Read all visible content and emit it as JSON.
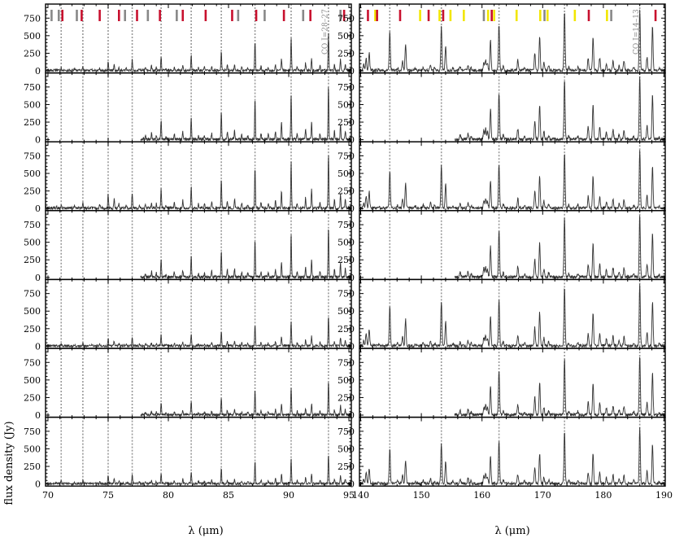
{
  "figure": {
    "ylabel": "flux density (Jy)",
    "xlabel": "λ (μm)"
  },
  "chart_data": {
    "type": "line",
    "panels_per_column": 7,
    "ylim": [
      -30,
      950
    ],
    "yticks": [
      0,
      250,
      500,
      750
    ],
    "colors": {
      "spectrum": "#333333",
      "guide": "#999999",
      "frame": "#000000",
      "marker_red": "#c8102e",
      "marker_gray": "#888888",
      "marker_yellow": "#f2e600"
    },
    "columns": [
      {
        "name": "left",
        "xlim": [
          69.8,
          95.2
        ],
        "xticks": [
          70,
          75,
          80,
          85,
          90,
          95
        ],
        "co_label": "CO J=28–27",
        "co_label_x": 93.4,
        "guide_lines": [
          71.1,
          72.9,
          75.0,
          77.0,
          79.4,
          81.9,
          84.4,
          87.2,
          90.2,
          93.3
        ],
        "panel_start": [
          69.8,
          77.7,
          69.8,
          77.7,
          69.8,
          77.7,
          69.8
        ],
        "panel_scale": [
          0.7,
          0.95,
          1.0,
          0.9,
          0.55,
          0.6,
          0.55
        ],
        "markers": [
          {
            "x": 70.3,
            "c": "gray"
          },
          {
            "x": 70.9,
            "c": "gray"
          },
          {
            "x": 71.2,
            "c": "red"
          },
          {
            "x": 72.4,
            "c": "gray"
          },
          {
            "x": 72.8,
            "c": "red"
          },
          {
            "x": 74.3,
            "c": "red"
          },
          {
            "x": 75.9,
            "c": "red"
          },
          {
            "x": 76.4,
            "c": "gray"
          },
          {
            "x": 77.4,
            "c": "red"
          },
          {
            "x": 78.3,
            "c": "gray"
          },
          {
            "x": 79.3,
            "c": "red"
          },
          {
            "x": 80.7,
            "c": "gray"
          },
          {
            "x": 81.2,
            "c": "red"
          },
          {
            "x": 83.1,
            "c": "red"
          },
          {
            "x": 85.3,
            "c": "red"
          },
          {
            "x": 85.8,
            "c": "gray"
          },
          {
            "x": 87.3,
            "c": "red"
          },
          {
            "x": 88.0,
            "c": "gray"
          },
          {
            "x": 89.6,
            "c": "red"
          },
          {
            "x": 91.2,
            "c": "gray"
          },
          {
            "x": 91.8,
            "c": "red"
          },
          {
            "x": 94.3,
            "c": "gray"
          },
          {
            "x": 94.6,
            "c": "red"
          }
        ],
        "peaks": [
          {
            "x": 70.7,
            "h": 30
          },
          {
            "x": 71.1,
            "h": 60
          },
          {
            "x": 72.2,
            "h": 35
          },
          {
            "x": 72.9,
            "h": 90
          },
          {
            "x": 73.6,
            "h": 25
          },
          {
            "x": 74.3,
            "h": 50
          },
          {
            "x": 75.0,
            "h": 200
          },
          {
            "x": 75.5,
            "h": 130
          },
          {
            "x": 75.9,
            "h": 60
          },
          {
            "x": 76.5,
            "h": 40
          },
          {
            "x": 77.0,
            "h": 220
          },
          {
            "x": 77.6,
            "h": 45
          },
          {
            "x": 78.1,
            "h": 50
          },
          {
            "x": 78.6,
            "h": 90
          },
          {
            "x": 79.0,
            "h": 60
          },
          {
            "x": 79.4,
            "h": 280
          },
          {
            "x": 79.8,
            "h": 40
          },
          {
            "x": 80.5,
            "h": 80
          },
          {
            "x": 81.2,
            "h": 110
          },
          {
            "x": 81.9,
            "h": 310
          },
          {
            "x": 82.5,
            "h": 55
          },
          {
            "x": 83.0,
            "h": 60
          },
          {
            "x": 83.6,
            "h": 90
          },
          {
            "x": 84.4,
            "h": 400
          },
          {
            "x": 84.9,
            "h": 110
          },
          {
            "x": 85.5,
            "h": 130
          },
          {
            "x": 86.1,
            "h": 70
          },
          {
            "x": 86.6,
            "h": 60
          },
          {
            "x": 87.2,
            "h": 580
          },
          {
            "x": 87.7,
            "h": 90
          },
          {
            "x": 88.3,
            "h": 70
          },
          {
            "x": 88.9,
            "h": 120
          },
          {
            "x": 89.4,
            "h": 240
          },
          {
            "x": 90.2,
            "h": 650
          },
          {
            "x": 90.7,
            "h": 80
          },
          {
            "x": 91.4,
            "h": 150
          },
          {
            "x": 91.9,
            "h": 260
          },
          {
            "x": 92.6,
            "h": 90
          },
          {
            "x": 93.3,
            "h": 780
          },
          {
            "x": 93.8,
            "h": 120
          },
          {
            "x": 94.3,
            "h": 220
          },
          {
            "x": 94.7,
            "h": 130
          }
        ]
      },
      {
        "name": "right",
        "xlim": [
          139.8,
          190.2
        ],
        "xticks": [
          140,
          150,
          160,
          170,
          180,
          190
        ],
        "co_label": "CO J=14–13",
        "co_label_x": 186.2,
        "guide_lines": [
          144.8,
          153.3,
          162.8,
          173.6,
          186.0
        ],
        "panel_start": [
          139.8,
          155.5,
          139.8,
          155.5,
          139.8,
          155.5,
          139.8
        ],
        "panel_scale": [
          1.0,
          1.0,
          0.95,
          1.0,
          1.0,
          0.95,
          0.9
        ],
        "markers": [
          {
            "x": 141.2,
            "c": "red"
          },
          {
            "x": 142.4,
            "c": "yellow"
          },
          {
            "x": 142.7,
            "c": "red"
          },
          {
            "x": 146.5,
            "c": "red"
          },
          {
            "x": 149.8,
            "c": "yellow"
          },
          {
            "x": 151.2,
            "c": "red"
          },
          {
            "x": 153.0,
            "c": "yellow"
          },
          {
            "x": 153.6,
            "c": "red"
          },
          {
            "x": 154.8,
            "c": "yellow"
          },
          {
            "x": 157.0,
            "c": "yellow"
          },
          {
            "x": 160.3,
            "c": "gray"
          },
          {
            "x": 161.0,
            "c": "yellow"
          },
          {
            "x": 161.6,
            "c": "red"
          },
          {
            "x": 162.0,
            "c": "yellow"
          },
          {
            "x": 165.7,
            "c": "yellow"
          },
          {
            "x": 169.6,
            "c": "yellow"
          },
          {
            "x": 170.3,
            "c": "gray"
          },
          {
            "x": 170.8,
            "c": "yellow"
          },
          {
            "x": 175.3,
            "c": "yellow"
          },
          {
            "x": 177.6,
            "c": "red"
          },
          {
            "x": 180.6,
            "c": "yellow"
          },
          {
            "x": 181.3,
            "c": "gray"
          },
          {
            "x": 188.6,
            "c": "red"
          }
        ],
        "peaks": [
          {
            "x": 140.5,
            "h": 80
          },
          {
            "x": 140.9,
            "h": 180
          },
          {
            "x": 141.4,
            "h": 250
          },
          {
            "x": 143.0,
            "h": 30
          },
          {
            "x": 144.8,
            "h": 560
          },
          {
            "x": 146.1,
            "h": 40
          },
          {
            "x": 146.9,
            "h": 140
          },
          {
            "x": 147.4,
            "h": 380
          },
          {
            "x": 149.0,
            "h": 30
          },
          {
            "x": 150.3,
            "h": 50
          },
          {
            "x": 151.5,
            "h": 80
          },
          {
            "x": 152.2,
            "h": 40
          },
          {
            "x": 153.3,
            "h": 640
          },
          {
            "x": 154.0,
            "h": 360
          },
          {
            "x": 155.2,
            "h": 40
          },
          {
            "x": 156.4,
            "h": 60
          },
          {
            "x": 157.7,
            "h": 80
          },
          {
            "x": 158.2,
            "h": 40
          },
          {
            "x": 160.3,
            "h": 120
          },
          {
            "x": 160.6,
            "h": 150
          },
          {
            "x": 160.9,
            "h": 110
          },
          {
            "x": 161.4,
            "h": 430
          },
          {
            "x": 162.8,
            "h": 660
          },
          {
            "x": 163.5,
            "h": 60
          },
          {
            "x": 165.9,
            "h": 150
          },
          {
            "x": 167.0,
            "h": 40
          },
          {
            "x": 168.7,
            "h": 260
          },
          {
            "x": 169.5,
            "h": 480
          },
          {
            "x": 170.2,
            "h": 110
          },
          {
            "x": 171.0,
            "h": 60
          },
          {
            "x": 173.6,
            "h": 840
          },
          {
            "x": 174.3,
            "h": 50
          },
          {
            "x": 175.8,
            "h": 50
          },
          {
            "x": 177.5,
            "h": 180
          },
          {
            "x": 178.3,
            "h": 480
          },
          {
            "x": 179.4,
            "h": 180
          },
          {
            "x": 180.5,
            "h": 100
          },
          {
            "x": 181.6,
            "h": 140
          },
          {
            "x": 182.6,
            "h": 70
          },
          {
            "x": 183.4,
            "h": 130
          },
          {
            "x": 185.0,
            "h": 50
          },
          {
            "x": 186.0,
            "h": 880
          },
          {
            "x": 187.2,
            "h": 190
          },
          {
            "x": 188.1,
            "h": 630
          },
          {
            "x": 189.2,
            "h": 30
          }
        ]
      }
    ]
  }
}
